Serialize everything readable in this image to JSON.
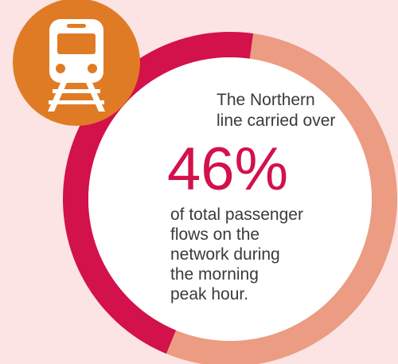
{
  "chart_data": {
    "type": "donut",
    "values": [
      46,
      54
    ],
    "value_labels": [
      "46%",
      null
    ],
    "colors": [
      "#d3114a",
      "#eb9c82"
    ],
    "intro": [
      "The Northern",
      "line carried over"
    ],
    "outro": [
      "of total passenger",
      "flows on the",
      "network during",
      "the morning",
      "peak hour."
    ]
  }
}
